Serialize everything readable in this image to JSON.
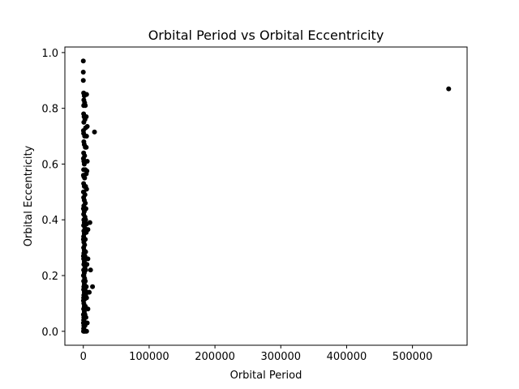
{
  "chart_data": {
    "type": "scatter",
    "title": "Orbital Period vs Orbital Eccentricity",
    "xlabel": "Orbital Period",
    "ylabel": "Orbital Eccentricity",
    "xlim": [
      -28000,
      583000
    ],
    "ylim": [
      -0.05,
      1.02
    ],
    "xticks": [
      0,
      100000,
      200000,
      300000,
      400000,
      500000
    ],
    "xtick_labels": [
      "0",
      "100000",
      "200000",
      "300000",
      "400000",
      "500000"
    ],
    "yticks": [
      0.0,
      0.2,
      0.4,
      0.6,
      0.8,
      1.0
    ],
    "ytick_labels": [
      "0.0",
      "0.2",
      "0.4",
      "0.6",
      "0.8",
      "1.0"
    ],
    "grid": false,
    "legend": "none",
    "marker_color": "#000000",
    "series": [
      {
        "points": [
          [
            0,
            0.97
          ],
          [
            0,
            0.93
          ],
          [
            0,
            0.9
          ],
          [
            500,
            0.855
          ],
          [
            1500,
            0.845
          ],
          [
            800,
            0.83
          ],
          [
            2000,
            0.82
          ],
          [
            600,
            0.81
          ],
          [
            3000,
            0.81
          ],
          [
            5000,
            0.85
          ],
          [
            500,
            0.78
          ],
          [
            1200,
            0.77
          ],
          [
            2500,
            0.76
          ],
          [
            4500,
            0.77
          ],
          [
            800,
            0.75
          ],
          [
            3500,
            0.73
          ],
          [
            6000,
            0.735
          ],
          [
            17000,
            0.715
          ],
          [
            500,
            0.71
          ],
          [
            2000,
            0.7
          ],
          [
            5000,
            0.7
          ],
          [
            800,
            0.68
          ],
          [
            1500,
            0.67
          ],
          [
            3000,
            0.66
          ],
          [
            4500,
            0.66
          ],
          [
            500,
            0.64
          ],
          [
            2000,
            0.63
          ],
          [
            800,
            0.61
          ],
          [
            2500,
            0.61
          ],
          [
            6000,
            0.61
          ],
          [
            1500,
            0.6
          ],
          [
            500,
            0.58
          ],
          [
            3000,
            0.58
          ],
          [
            5500,
            0.575
          ],
          [
            4500,
            0.565
          ],
          [
            800,
            0.555
          ],
          [
            2000,
            0.55
          ],
          [
            500,
            0.53
          ],
          [
            1500,
            0.52
          ],
          [
            3500,
            0.52
          ],
          [
            5000,
            0.51
          ],
          [
            800,
            0.5
          ],
          [
            2500,
            0.49
          ],
          [
            500,
            0.48
          ],
          [
            1500,
            0.47
          ],
          [
            3000,
            0.46
          ],
          [
            800,
            0.45
          ],
          [
            4000,
            0.44
          ],
          [
            1500,
            0.43
          ],
          [
            500,
            0.42
          ],
          [
            2500,
            0.41
          ],
          [
            800,
            0.4
          ],
          [
            3500,
            0.4
          ],
          [
            1500,
            0.39
          ],
          [
            10000,
            0.39
          ],
          [
            5000,
            0.385
          ],
          [
            500,
            0.38
          ],
          [
            2500,
            0.37
          ],
          [
            7000,
            0.365
          ],
          [
            800,
            0.36
          ],
          [
            4500,
            0.355
          ],
          [
            1500,
            0.35
          ],
          [
            500,
            0.34
          ],
          [
            3000,
            0.33
          ],
          [
            800,
            0.32
          ],
          [
            2000,
            0.31
          ],
          [
            500,
            0.3
          ],
          [
            1500,
            0.29
          ],
          [
            3500,
            0.285
          ],
          [
            800,
            0.28
          ],
          [
            2500,
            0.27
          ],
          [
            500,
            0.26
          ],
          [
            4500,
            0.26
          ],
          [
            7000,
            0.26
          ],
          [
            1500,
            0.25
          ],
          [
            5500,
            0.24
          ],
          [
            800,
            0.24
          ],
          [
            2500,
            0.23
          ],
          [
            500,
            0.22
          ],
          [
            3500,
            0.22
          ],
          [
            11000,
            0.22
          ],
          [
            1500,
            0.21
          ],
          [
            800,
            0.2
          ],
          [
            2000,
            0.19
          ],
          [
            500,
            0.18
          ],
          [
            3000,
            0.18
          ],
          [
            1500,
            0.17
          ],
          [
            800,
            0.16
          ],
          [
            4500,
            0.16
          ],
          [
            14000,
            0.16
          ],
          [
            500,
            0.15
          ],
          [
            2500,
            0.15
          ],
          [
            1500,
            0.14
          ],
          [
            6000,
            0.14
          ],
          [
            9000,
            0.14
          ],
          [
            800,
            0.13
          ],
          [
            3500,
            0.13
          ],
          [
            500,
            0.12
          ],
          [
            2000,
            0.115
          ],
          [
            5000,
            0.12
          ],
          [
            800,
            0.1
          ],
          [
            1500,
            0.09
          ],
          [
            3000,
            0.09
          ],
          [
            500,
            0.08
          ],
          [
            7000,
            0.08
          ],
          [
            1500,
            0.07
          ],
          [
            2500,
            0.06
          ],
          [
            800,
            0.05
          ],
          [
            4000,
            0.05
          ],
          [
            500,
            0.04
          ],
          [
            1500,
            0.035
          ],
          [
            6000,
            0.03
          ],
          [
            800,
            0.02
          ],
          [
            2500,
            0.02
          ],
          [
            500,
            0.01
          ],
          [
            1500,
            0.005
          ],
          [
            300,
            0.0
          ],
          [
            1000,
            0.0
          ],
          [
            2000,
            0.0
          ],
          [
            3500,
            0.0
          ],
          [
            5000,
            0.0
          ],
          [
            200,
            0.03
          ],
          [
            200,
            0.06
          ],
          [
            200,
            0.11
          ],
          [
            200,
            0.2
          ],
          [
            200,
            0.27
          ],
          [
            200,
            0.33
          ],
          [
            200,
            0.44
          ],
          [
            200,
            0.5
          ],
          [
            200,
            0.56
          ],
          [
            200,
            0.62
          ],
          [
            200,
            0.72
          ],
          [
            555000,
            0.87
          ]
        ]
      }
    ]
  }
}
